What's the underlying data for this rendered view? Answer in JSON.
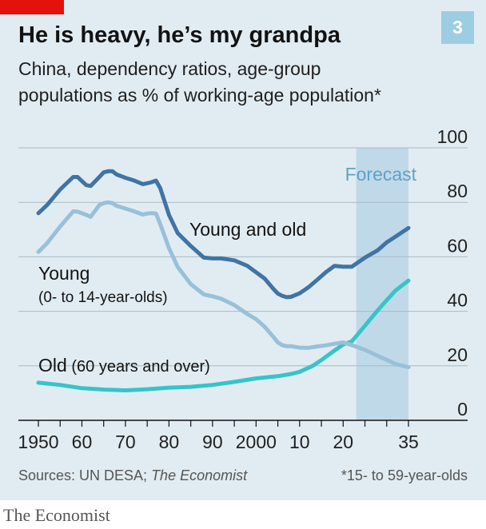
{
  "badge": "3",
  "title": "He is heavy, he’s my grandpa",
  "subtitle_lines": [
    "China, dependency ratios, age-group",
    "populations as % of working-age population*"
  ],
  "sources_prefix": "Sources: UN DESA; ",
  "sources_italic": "The Economist",
  "footnote": "*15- to 59-year-olds",
  "brand": "The Economist",
  "colors": {
    "panel_bg": "#e1ecf2",
    "young_and_old": "#3f74a4",
    "young": "#98c0d9",
    "old": "#36c4c9",
    "forecast_band": "#c0d9e8",
    "forecast_text": "#5ea2c8",
    "badge_bg": "#9dcde2",
    "accent_red": "#e3120b"
  },
  "chart_data": {
    "type": "line",
    "xlim": [
      1950,
      2035
    ],
    "ylim": [
      0,
      100
    ],
    "y_axis_position": "right",
    "grid": true,
    "x_ticks": [
      1950,
      1960,
      1970,
      1980,
      1990,
      2000,
      2010,
      2020,
      2035
    ],
    "x_tick_labels": [
      "1950",
      "60",
      "70",
      "80",
      "90",
      "2000",
      "10",
      "20",
      "35"
    ],
    "y_ticks": [
      0,
      20,
      40,
      60,
      80,
      100
    ],
    "y_tick_labels": [
      "0",
      "20",
      "40",
      "60",
      "80",
      "100"
    ],
    "forecast": {
      "start": 2023,
      "end": 2035,
      "label": "Forecast"
    },
    "series": [
      {
        "name": "Young and old",
        "label_lines": [
          "Young and old"
        ],
        "color_key": "young_and_old",
        "x": [
          1950,
          1952,
          1955,
          1958,
          1959,
          1961,
          1962,
          1964,
          1965,
          1966,
          1967,
          1968,
          1970,
          1972,
          1974,
          1975,
          1976,
          1977,
          1978,
          1980,
          1982,
          1985,
          1988,
          1990,
          1992,
          1995,
          1998,
          2000,
          2002,
          2004,
          2005,
          2006,
          2007,
          2008,
          2010,
          2012,
          2014,
          2016,
          2018,
          2020,
          2022,
          2025,
          2028,
          2030,
          2032,
          2035
        ],
        "values": [
          76.0,
          79.0,
          84.7,
          89.3,
          89.3,
          86.3,
          86.0,
          89.3,
          91.0,
          91.4,
          91.4,
          90.2,
          89.0,
          88.0,
          86.7,
          87.0,
          87.4,
          88.0,
          85.2,
          75.4,
          68.7,
          64.0,
          59.7,
          59.4,
          59.4,
          58.7,
          56.7,
          54.3,
          52.0,
          48.2,
          46.5,
          45.7,
          45.2,
          45.3,
          46.6,
          48.8,
          51.5,
          54.3,
          56.7,
          56.4,
          56.4,
          59.7,
          62.5,
          65.3,
          67.4,
          70.6
        ]
      },
      {
        "name": "Young",
        "label_lines": [
          "Young",
          "(0- to 14-year-olds)"
        ],
        "color_key": "young",
        "x": [
          1950,
          1952,
          1955,
          1958,
          1959,
          1961,
          1962,
          1964,
          1965,
          1966,
          1967,
          1968,
          1970,
          1972,
          1974,
          1975,
          1976,
          1977,
          1978,
          1980,
          1982,
          1985,
          1988,
          1990,
          1992,
          1995,
          1998,
          2000,
          2002,
          2004,
          2005,
          2006,
          2007,
          2008,
          2010,
          2012,
          2014,
          2016,
          2018,
          2020,
          2022,
          2025,
          2028,
          2030,
          2032,
          2035
        ],
        "values": [
          61.8,
          65.0,
          71.1,
          76.7,
          76.6,
          75.4,
          74.7,
          79.0,
          79.7,
          80.0,
          79.7,
          78.7,
          77.7,
          76.7,
          75.5,
          75.9,
          76.0,
          75.9,
          72.0,
          63.2,
          56.3,
          50.0,
          46.2,
          45.5,
          44.6,
          42.3,
          39.0,
          37.1,
          34.3,
          30.6,
          28.6,
          27.6,
          27.2,
          27.2,
          26.7,
          26.6,
          27.1,
          27.5,
          28.1,
          28.6,
          27.6,
          25.9,
          23.6,
          22.2,
          20.7,
          19.5
        ]
      },
      {
        "name": "Old",
        "label_lines": [
          "Old (60 years and over)"
        ],
        "color_key": "old",
        "x": [
          1950,
          1955,
          1960,
          1965,
          1970,
          1975,
          1980,
          1985,
          1990,
          1995,
          2000,
          2005,
          2008,
          2010,
          2013,
          2015,
          2018,
          2020,
          2022,
          2025,
          2028,
          2030,
          2032,
          2035
        ],
        "values": [
          13.8,
          13.0,
          11.8,
          11.3,
          11.0,
          11.4,
          12.0,
          12.3,
          13.0,
          14.1,
          15.4,
          16.2,
          17.0,
          17.8,
          20.0,
          22.1,
          25.6,
          27.8,
          29.0,
          34.7,
          40.5,
          44.1,
          47.6,
          51.3
        ]
      }
    ]
  }
}
